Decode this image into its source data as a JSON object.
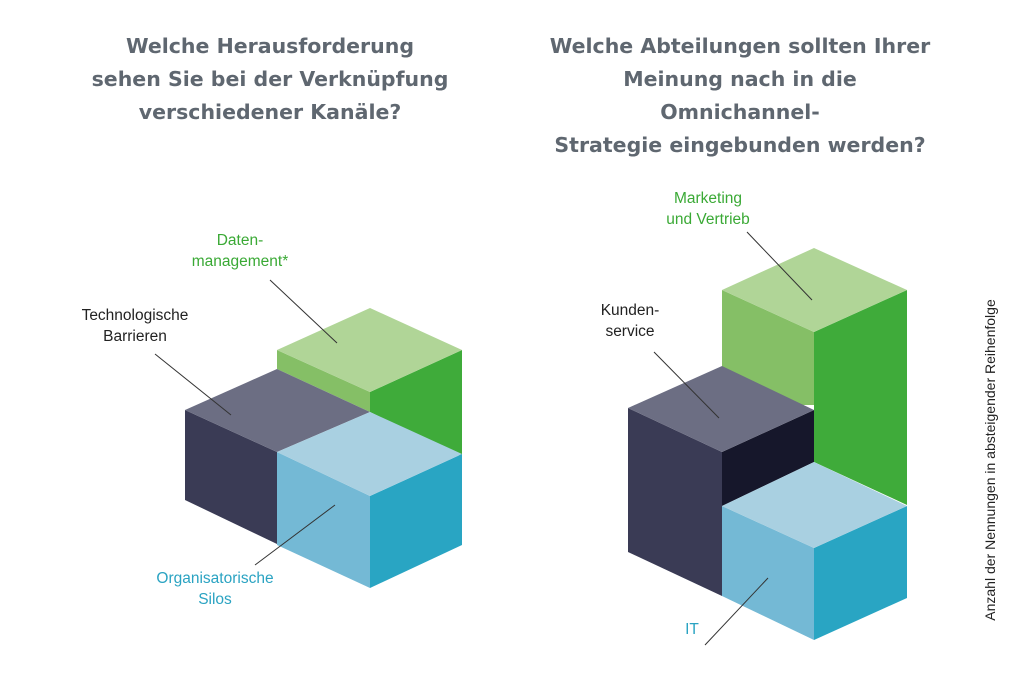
{
  "left_chart": {
    "title": "Welche Herausforderung\nsehen Sie bei der Verknüpfung\nverschiedener Kanäle?",
    "labels": {
      "datenmanagement": "Daten-\nmanagement*",
      "technologische_barrieren": "Technologische\nBarrieren",
      "organisatorische_silos": "Organisatorische\nSilos"
    }
  },
  "right_chart": {
    "title": "Welche Abteilungen sollten Ihrer\nMeinung nach in die Omnichannel-\nStrategie eingebunden werden?",
    "labels": {
      "marketing_vertrieb": "Marketing\nund Vertrieb",
      "kundenservice": "Kunden-\nservice",
      "it": "IT"
    }
  },
  "side_note": "Anzahl der Nennungen in absteigender Reihenfolge",
  "colors": {
    "title": "#5f6770",
    "green_label": "#3aa935",
    "teal_label": "#2aa3c2",
    "dark_label": "#222222",
    "green_top": "#b0d597",
    "green_left": "#85bf66",
    "green_right": "#3fab3a",
    "navy_top": "#6c6e83",
    "navy_left": "#3a3b55",
    "navy_right": "#16172b",
    "blue_top": "#a9d0e1",
    "blue_left": "#74b9d5",
    "blue_right": "#29a5c3"
  }
}
